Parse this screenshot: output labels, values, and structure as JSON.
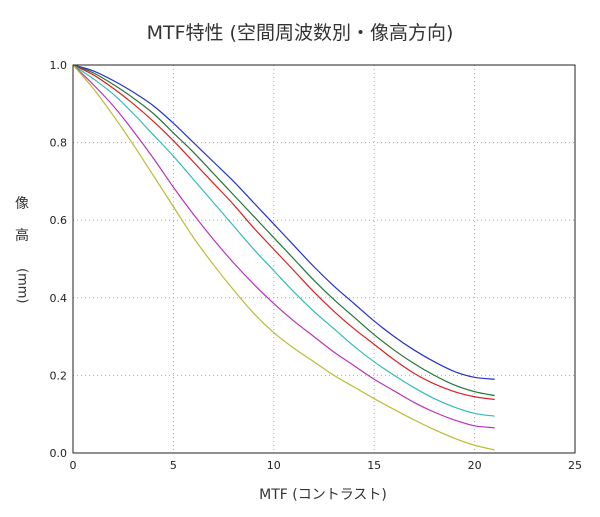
{
  "chart_data": {
    "type": "line",
    "title": "MTF特性 (空間周波数別・像高方向)",
    "xlabel": "MTF (コントラスト)",
    "ylabel_chars": [
      "像",
      "高"
    ],
    "ylabel_unit": "(mm)",
    "xlim": [
      0,
      25
    ],
    "ylim": [
      0,
      1.0
    ],
    "xticks": [
      "0",
      "5",
      "10",
      "15",
      "20",
      "25"
    ],
    "yticks": [
      "0.0",
      "0.2",
      "0.4",
      "0.6",
      "0.8",
      "1.0"
    ],
    "grid": true,
    "x": [
      0,
      1,
      2,
      3,
      4,
      5,
      6,
      7,
      8,
      9,
      10,
      11,
      12,
      13,
      14,
      15,
      16,
      17,
      18,
      19,
      20,
      21
    ],
    "series": [
      {
        "color": "#2233cc",
        "values": [
          1.0,
          0.985,
          0.96,
          0.93,
          0.895,
          0.85,
          0.8,
          0.75,
          0.7,
          0.645,
          0.59,
          0.535,
          0.48,
          0.43,
          0.385,
          0.34,
          0.3,
          0.265,
          0.235,
          0.21,
          0.195,
          0.19
        ]
      },
      {
        "color": "#227733",
        "values": [
          1.0,
          0.98,
          0.95,
          0.915,
          0.875,
          0.825,
          0.775,
          0.72,
          0.665,
          0.61,
          0.555,
          0.5,
          0.445,
          0.395,
          0.35,
          0.305,
          0.265,
          0.23,
          0.2,
          0.175,
          0.158,
          0.148
        ]
      },
      {
        "color": "#dd2222",
        "values": [
          1.0,
          0.975,
          0.94,
          0.9,
          0.855,
          0.805,
          0.75,
          0.695,
          0.64,
          0.58,
          0.525,
          0.47,
          0.415,
          0.365,
          0.32,
          0.28,
          0.24,
          0.205,
          0.178,
          0.158,
          0.145,
          0.138
        ]
      },
      {
        "color": "#33bbbb",
        "values": [
          1.0,
          0.965,
          0.925,
          0.875,
          0.82,
          0.765,
          0.705,
          0.645,
          0.585,
          0.525,
          0.47,
          0.415,
          0.365,
          0.32,
          0.275,
          0.235,
          0.2,
          0.168,
          0.14,
          0.118,
          0.102,
          0.095
        ]
      },
      {
        "color": "#bb33bb",
        "values": [
          1.0,
          0.95,
          0.895,
          0.83,
          0.76,
          0.685,
          0.615,
          0.55,
          0.49,
          0.435,
          0.385,
          0.34,
          0.3,
          0.26,
          0.225,
          0.19,
          0.16,
          0.13,
          0.105,
          0.085,
          0.07,
          0.065
        ]
      },
      {
        "color": "#bbbb33",
        "values": [
          1.0,
          0.94,
          0.87,
          0.795,
          0.715,
          0.635,
          0.555,
          0.485,
          0.42,
          0.36,
          0.31,
          0.27,
          0.235,
          0.2,
          0.17,
          0.14,
          0.112,
          0.085,
          0.06,
          0.038,
          0.02,
          0.008
        ]
      }
    ]
  }
}
